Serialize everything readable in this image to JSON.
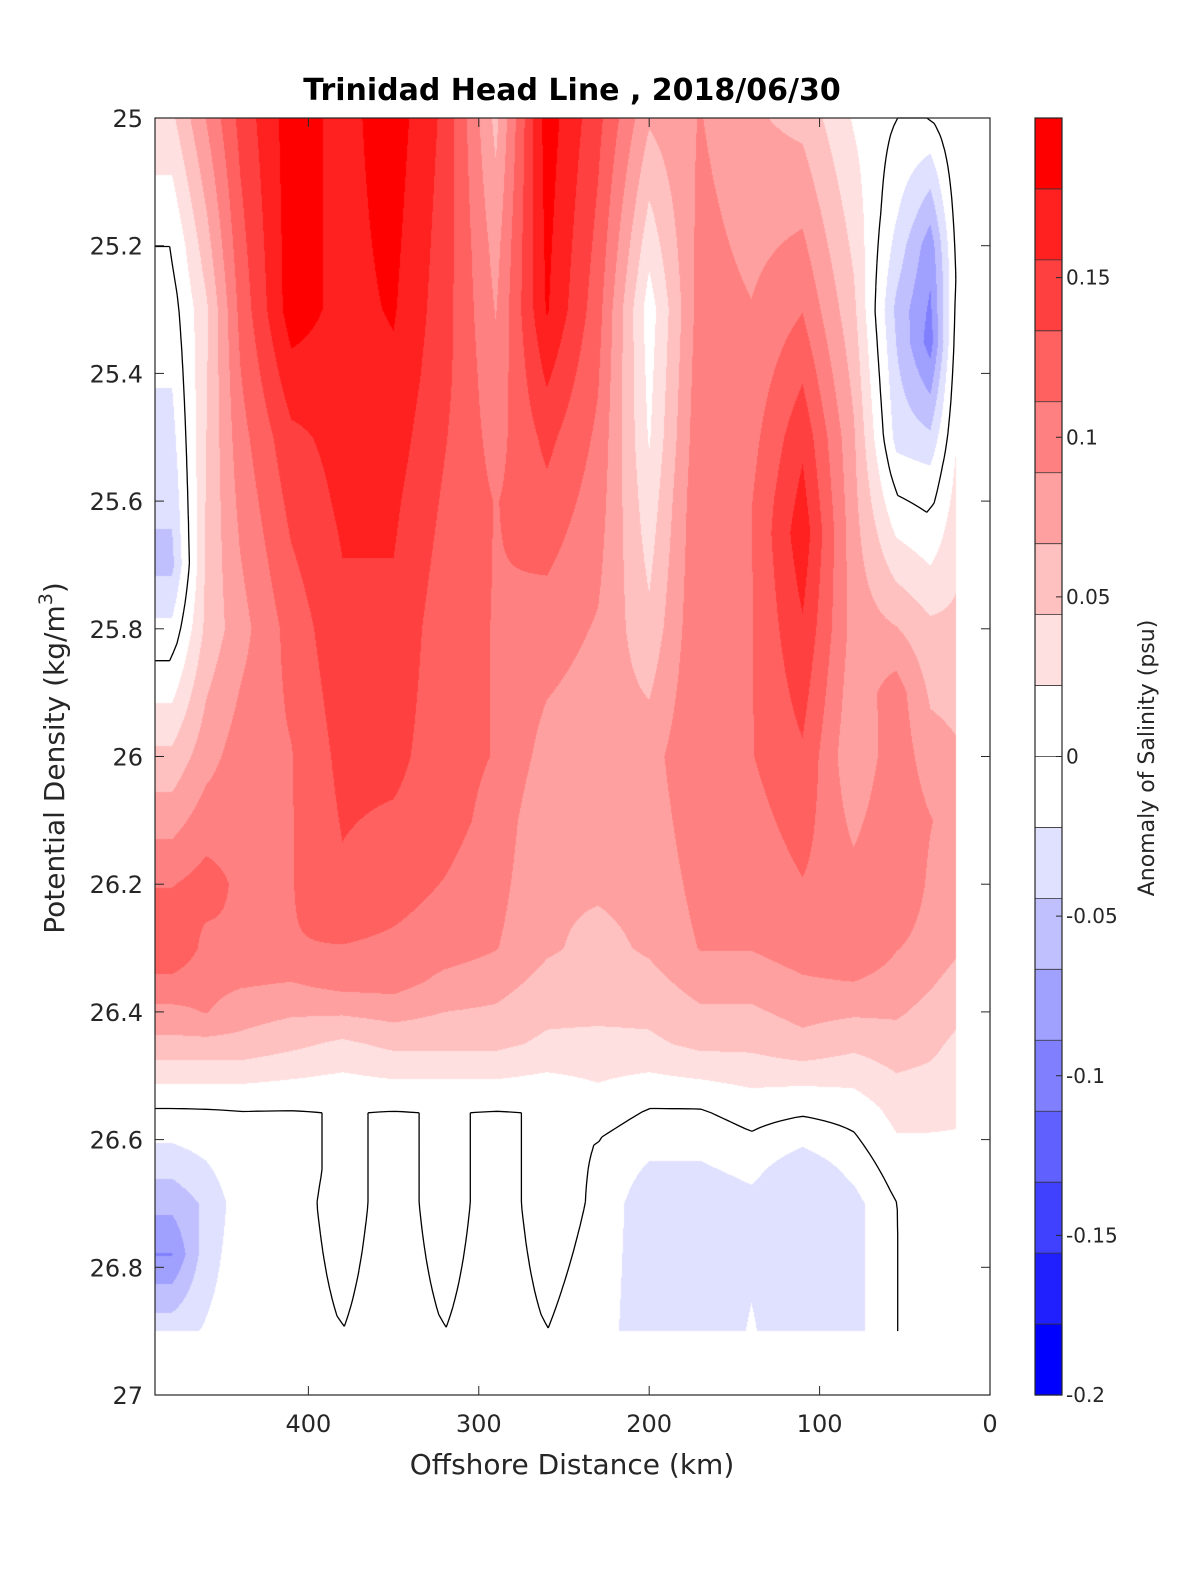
{
  "chart_data": {
    "type": "heatmap",
    "subtype": "filled-contour",
    "title": "Trinidad Head Line , 2018/06/30",
    "xlabel": "Offshore Distance (km)",
    "ylabel_main": "Potential Density (kg/m",
    "ylabel_sup": "3",
    "ylabel_end": ")",
    "xlim": [
      490,
      0
    ],
    "ylim": [
      25,
      27
    ],
    "x_reversed": true,
    "y_reversed": true,
    "x_ticks": [
      400,
      300,
      200,
      100,
      0
    ],
    "x_tick_labels": [
      "400",
      "300",
      "200",
      "100",
      "0"
    ],
    "y_ticks": [
      25,
      25.2,
      25.4,
      25.6,
      25.8,
      26,
      26.2,
      26.4,
      26.6,
      26.8,
      27
    ],
    "y_tick_labels": [
      "25",
      "25.2",
      "25.4",
      "25.6",
      "25.8",
      "26",
      "26.2",
      "26.4",
      "26.6",
      "26.8",
      "27"
    ],
    "data_x_extent": [
      20,
      490
    ],
    "data_y_extent": [
      25,
      26.9
    ],
    "zero_contour_color": "#000000",
    "colorbar": {
      "label": "Anomaly of Salinity (psu)",
      "range": [
        -0.2,
        0.2
      ],
      "level_step": 0.025,
      "ticks": [
        0.15,
        0.1,
        0.05,
        0,
        -0.05,
        -0.1,
        -0.15,
        -0.2
      ],
      "tick_labels": [
        "0.15",
        "0.1",
        "0.05",
        "0",
        "-0.05",
        "-0.1",
        "-0.15",
        "-0.2"
      ],
      "colors_top_to_bottom": [
        "#ff0000",
        "#ff2020",
        "#ff4040",
        "#ff6060",
        "#ff8080",
        "#ffa0a0",
        "#ffc0c0",
        "#ffe0e0",
        "#ffffff",
        "#ffffff",
        "#e0e0ff",
        "#c0c0ff",
        "#a0a0ff",
        "#8080ff",
        "#6060ff",
        "#4040ff",
        "#2020ff",
        "#0000ff"
      ]
    },
    "columns": [
      {
        "x": 480,
        "profile": [
          [
            25.0,
            0.04
          ],
          [
            25.2,
            0.0
          ],
          [
            25.7,
            -0.05
          ],
          [
            25.85,
            0.0
          ],
          [
            26.0,
            0.05
          ],
          [
            26.2,
            0.11
          ],
          [
            26.3,
            0.13
          ],
          [
            26.45,
            0.06
          ],
          [
            26.55,
            0.0
          ],
          [
            26.7,
            -0.06
          ],
          [
            26.78,
            -0.09
          ],
          [
            26.9,
            -0.03
          ]
        ]
      },
      {
        "x": 460,
        "profile": [
          [
            25.0,
            0.09
          ],
          [
            25.3,
            0.04
          ],
          [
            25.8,
            0.05
          ],
          [
            26.0,
            0.08
          ],
          [
            26.2,
            0.12
          ],
          [
            26.4,
            0.09
          ],
          [
            26.55,
            0.0
          ],
          [
            26.7,
            -0.04
          ],
          [
            26.9,
            -0.02
          ]
        ]
      },
      {
        "x": 440,
        "profile": [
          [
            25.0,
            0.14
          ],
          [
            25.4,
            0.11
          ],
          [
            25.8,
            0.08
          ],
          [
            26.0,
            0.1
          ],
          [
            26.3,
            0.11
          ],
          [
            26.45,
            0.06
          ],
          [
            26.55,
            0.0
          ],
          [
            26.7,
            -0.01
          ],
          [
            26.9,
            -0.01
          ]
        ]
      },
      {
        "x": 410,
        "profile": [
          [
            25.0,
            0.19
          ],
          [
            25.3,
            0.19
          ],
          [
            25.5,
            0.15
          ],
          [
            25.8,
            0.12
          ],
          [
            26.0,
            0.11
          ],
          [
            26.3,
            0.11
          ],
          [
            26.45,
            0.05
          ],
          [
            26.55,
            0.0
          ],
          [
            26.65,
            -0.01
          ],
          [
            26.9,
            -0.01
          ]
        ]
      },
      {
        "x": 380,
        "profile": [
          [
            25.0,
            0.17
          ],
          [
            25.3,
            0.17
          ],
          [
            25.6,
            0.16
          ],
          [
            26.0,
            0.14
          ],
          [
            26.2,
            0.13
          ],
          [
            26.35,
            0.1
          ],
          [
            26.45,
            0.04
          ],
          [
            26.55,
            0.0
          ],
          [
            26.7,
            0.01
          ],
          [
            26.9,
            0.0
          ]
        ]
      },
      {
        "x": 350,
        "profile": [
          [
            25.0,
            0.19
          ],
          [
            25.3,
            0.18
          ],
          [
            25.6,
            0.16
          ],
          [
            26.0,
            0.14
          ],
          [
            26.2,
            0.12
          ],
          [
            26.35,
            0.1
          ],
          [
            26.45,
            0.05
          ],
          [
            26.55,
            0.0
          ],
          [
            26.7,
            -0.01
          ],
          [
            26.9,
            -0.01
          ]
        ]
      },
      {
        "x": 320,
        "profile": [
          [
            25.0,
            0.15
          ],
          [
            25.4,
            0.14
          ],
          [
            25.8,
            0.12
          ],
          [
            26.1,
            0.12
          ],
          [
            26.3,
            0.1
          ],
          [
            26.45,
            0.05
          ],
          [
            26.55,
            0.0
          ],
          [
            26.7,
            0.01
          ],
          [
            26.9,
            0.0
          ]
        ]
      },
      {
        "x": 290,
        "profile": [
          [
            25.0,
            0.06
          ],
          [
            25.2,
            0.08
          ],
          [
            25.6,
            0.11
          ],
          [
            26.0,
            0.11
          ],
          [
            26.3,
            0.09
          ],
          [
            26.45,
            0.05
          ],
          [
            26.55,
            0.0
          ],
          [
            26.7,
            -0.01
          ],
          [
            26.9,
            -0.01
          ]
        ]
      },
      {
        "x": 260,
        "profile": [
          [
            25.0,
            0.19
          ],
          [
            25.3,
            0.18
          ],
          [
            25.5,
            0.14
          ],
          [
            25.8,
            0.1
          ],
          [
            26.1,
            0.07
          ],
          [
            26.3,
            0.07
          ],
          [
            26.45,
            0.04
          ],
          [
            26.55,
            0.0
          ],
          [
            26.7,
            0.01
          ],
          [
            26.9,
            0.0
          ]
        ]
      },
      {
        "x": 230,
        "profile": [
          [
            25.0,
            0.14
          ],
          [
            25.3,
            0.12
          ],
          [
            25.6,
            0.1
          ],
          [
            25.9,
            0.08
          ],
          [
            26.2,
            0.07
          ],
          [
            26.4,
            0.05
          ],
          [
            26.52,
            0.02
          ],
          [
            26.6,
            0.0
          ],
          [
            26.9,
            -0.01
          ]
        ]
      },
      {
        "x": 200,
        "profile": [
          [
            25.0,
            0.07
          ],
          [
            25.3,
            0.01
          ],
          [
            25.5,
            0.02
          ],
          [
            25.8,
            0.05
          ],
          [
            26.0,
            0.08
          ],
          [
            26.3,
            0.07
          ],
          [
            26.45,
            0.04
          ],
          [
            26.55,
            0.0
          ],
          [
            26.7,
            -0.04
          ],
          [
            26.9,
            -0.04
          ]
        ]
      },
      {
        "x": 170,
        "profile": [
          [
            25.0,
            0.09
          ],
          [
            25.3,
            0.1
          ],
          [
            25.6,
            0.11
          ],
          [
            26.0,
            0.11
          ],
          [
            26.3,
            0.09
          ],
          [
            26.45,
            0.05
          ],
          [
            26.55,
            0.0
          ],
          [
            26.7,
            -0.04
          ],
          [
            26.9,
            -0.04
          ]
        ]
      },
      {
        "x": 140,
        "profile": [
          [
            25.0,
            0.07
          ],
          [
            25.3,
            0.09
          ],
          [
            25.6,
            0.11
          ],
          [
            26.0,
            0.11
          ],
          [
            26.3,
            0.09
          ],
          [
            26.45,
            0.05
          ],
          [
            26.55,
            0.01
          ],
          [
            26.7,
            -0.03
          ],
          [
            26.9,
            -0.02
          ]
        ]
      },
      {
        "x": 110,
        "profile": [
          [
            25.0,
            0.06
          ],
          [
            25.3,
            0.11
          ],
          [
            25.5,
            0.15
          ],
          [
            25.65,
            0.17
          ],
          [
            26.0,
            0.13
          ],
          [
            26.3,
            0.1
          ],
          [
            26.45,
            0.06
          ],
          [
            26.52,
            0.02
          ],
          [
            26.65,
            -0.04
          ],
          [
            26.9,
            -0.04
          ]
        ]
      },
      {
        "x": 80,
        "profile": [
          [
            25.0,
            0.02
          ],
          [
            25.2,
            0.04
          ],
          [
            25.5,
            0.07
          ],
          [
            25.8,
            0.08
          ],
          [
            26.0,
            0.07
          ],
          [
            26.3,
            0.11
          ],
          [
            26.45,
            0.05
          ],
          [
            26.55,
            0.01
          ],
          [
            26.7,
            -0.03
          ],
          [
            26.9,
            -0.03
          ]
        ]
      },
      {
        "x": 55,
        "profile": [
          [
            25.0,
            0.0
          ],
          [
            25.15,
            -0.02
          ],
          [
            25.3,
            -0.05
          ],
          [
            25.5,
            -0.03
          ],
          [
            25.65,
            0.02
          ],
          [
            25.9,
            0.1
          ],
          [
            26.2,
            0.11
          ],
          [
            26.4,
            0.07
          ],
          [
            26.55,
            0.03
          ],
          [
            26.7,
            0.0
          ],
          [
            26.9,
            0.0
          ]
        ]
      },
      {
        "x": 35,
        "profile": [
          [
            25.0,
            0.0
          ],
          [
            25.2,
            -0.08
          ],
          [
            25.35,
            -0.1
          ],
          [
            25.55,
            -0.02
          ],
          [
            25.8,
            0.05
          ],
          [
            26.1,
            0.09
          ],
          [
            26.3,
            0.08
          ],
          [
            26.45,
            0.05
          ],
          [
            26.6,
            0.02
          ],
          [
            26.75,
            0.0
          ],
          [
            26.9,
            0.0
          ]
        ]
      },
      {
        "x": 20,
        "profile": [
          [
            25.0,
            0.02
          ],
          [
            25.25,
            0.0
          ],
          [
            25.5,
            0.02
          ],
          [
            25.8,
            0.05
          ],
          [
            26.1,
            0.08
          ],
          [
            26.3,
            0.07
          ],
          [
            26.45,
            0.04
          ],
          [
            26.6,
            0.02
          ],
          [
            26.9,
            0.0
          ]
        ]
      }
    ]
  }
}
